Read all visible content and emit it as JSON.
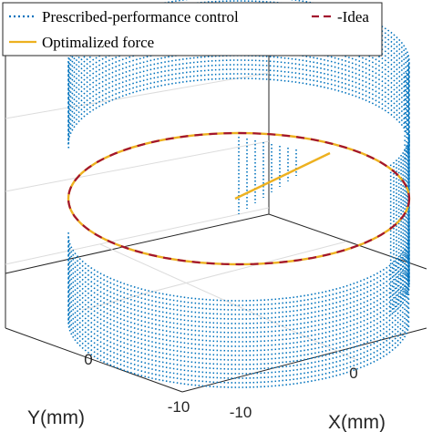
{
  "chart_data": {
    "type": "3d-line",
    "title": "",
    "xlabel": "X(mm)",
    "ylabel": "Y(mm)",
    "x_ticks": [
      "-10",
      "0"
    ],
    "y_ticks": [
      "-10",
      "0"
    ],
    "grid": true,
    "legend_placement": "top",
    "colors": {
      "prescribed": "#0072BD",
      "idea": "#A2142F",
      "optimalized": "#EDB120",
      "axis": "#262626",
      "grid": "#dcdcdc"
    },
    "series": [
      {
        "name": "Prescribed-performance control",
        "style": "dotted",
        "color": "#0072BD",
        "radius_mm": 10,
        "center": [
          0,
          0
        ],
        "note_shape": "helical stack of circles above and below the reference plane"
      },
      {
        "name": "Idea",
        "style": "dashed",
        "color": "#A2142F",
        "radius_mm": 10,
        "center": [
          0,
          0
        ]
      },
      {
        "name": "Optimalized force",
        "style": "solid",
        "color": "#EDB120",
        "radius_mm": 10,
        "center": [
          0,
          0
        ]
      }
    ]
  }
}
